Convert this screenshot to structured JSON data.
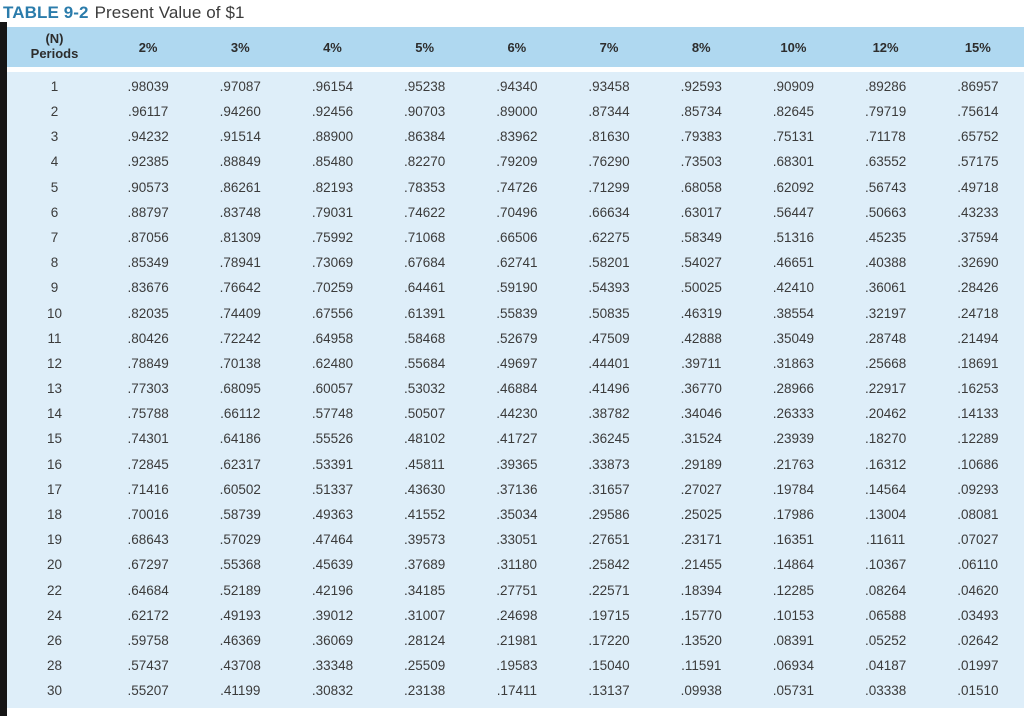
{
  "page": {
    "title_label": "TABLE 9-2",
    "title_text": "Present Value of $1"
  },
  "colors": {
    "title_accent": "#2b7cab",
    "header_bg": "#afd8f0",
    "body_bg": "#deeef9",
    "text": "#3b3b3b",
    "left_edge": "#151515"
  },
  "table": {
    "periods_header_line1": "(N)",
    "periods_header_line2": "Periods",
    "rate_headers": [
      "2%",
      "3%",
      "4%",
      "5%",
      "6%",
      "7%",
      "8%",
      "10%",
      "12%",
      "15%"
    ],
    "rows": [
      {
        "period": "1",
        "values": [
          ".98039",
          ".97087",
          ".96154",
          ".95238",
          ".94340",
          ".93458",
          ".92593",
          ".90909",
          ".89286",
          ".86957"
        ]
      },
      {
        "period": "2",
        "values": [
          ".96117",
          ".94260",
          ".92456",
          ".90703",
          ".89000",
          ".87344",
          ".85734",
          ".82645",
          ".79719",
          ".75614"
        ]
      },
      {
        "period": "3",
        "values": [
          ".94232",
          ".91514",
          ".88900",
          ".86384",
          ".83962",
          ".81630",
          ".79383",
          ".75131",
          ".71178",
          ".65752"
        ]
      },
      {
        "period": "4",
        "values": [
          ".92385",
          ".88849",
          ".85480",
          ".82270",
          ".79209",
          ".76290",
          ".73503",
          ".68301",
          ".63552",
          ".57175"
        ]
      },
      {
        "period": "5",
        "values": [
          ".90573",
          ".86261",
          ".82193",
          ".78353",
          ".74726",
          ".71299",
          ".68058",
          ".62092",
          ".56743",
          ".49718"
        ]
      },
      {
        "period": "6",
        "values": [
          ".88797",
          ".83748",
          ".79031",
          ".74622",
          ".70496",
          ".66634",
          ".63017",
          ".56447",
          ".50663",
          ".43233"
        ]
      },
      {
        "period": "7",
        "values": [
          ".87056",
          ".81309",
          ".75992",
          ".71068",
          ".66506",
          ".62275",
          ".58349",
          ".51316",
          ".45235",
          ".37594"
        ]
      },
      {
        "period": "8",
        "values": [
          ".85349",
          ".78941",
          ".73069",
          ".67684",
          ".62741",
          ".58201",
          ".54027",
          ".46651",
          ".40388",
          ".32690"
        ]
      },
      {
        "period": "9",
        "values": [
          ".83676",
          ".76642",
          ".70259",
          ".64461",
          ".59190",
          ".54393",
          ".50025",
          ".42410",
          ".36061",
          ".28426"
        ]
      },
      {
        "period": "10",
        "values": [
          ".82035",
          ".74409",
          ".67556",
          ".61391",
          ".55839",
          ".50835",
          ".46319",
          ".38554",
          ".32197",
          ".24718"
        ]
      },
      {
        "period": "11",
        "values": [
          ".80426",
          ".72242",
          ".64958",
          ".58468",
          ".52679",
          ".47509",
          ".42888",
          ".35049",
          ".28748",
          ".21494"
        ]
      },
      {
        "period": "12",
        "values": [
          ".78849",
          ".70138",
          ".62480",
          ".55684",
          ".49697",
          ".44401",
          ".39711",
          ".31863",
          ".25668",
          ".18691"
        ]
      },
      {
        "period": "13",
        "values": [
          ".77303",
          ".68095",
          ".60057",
          ".53032",
          ".46884",
          ".41496",
          ".36770",
          ".28966",
          ".22917",
          ".16253"
        ]
      },
      {
        "period": "14",
        "values": [
          ".75788",
          ".66112",
          ".57748",
          ".50507",
          ".44230",
          ".38782",
          ".34046",
          ".26333",
          ".20462",
          ".14133"
        ]
      },
      {
        "period": "15",
        "values": [
          ".74301",
          ".64186",
          ".55526",
          ".48102",
          ".41727",
          ".36245",
          ".31524",
          ".23939",
          ".18270",
          ".12289"
        ]
      },
      {
        "period": "16",
        "values": [
          ".72845",
          ".62317",
          ".53391",
          ".45811",
          ".39365",
          ".33873",
          ".29189",
          ".21763",
          ".16312",
          ".10686"
        ]
      },
      {
        "period": "17",
        "values": [
          ".71416",
          ".60502",
          ".51337",
          ".43630",
          ".37136",
          ".31657",
          ".27027",
          ".19784",
          ".14564",
          ".09293"
        ]
      },
      {
        "period": "18",
        "values": [
          ".70016",
          ".58739",
          ".49363",
          ".41552",
          ".35034",
          ".29586",
          ".25025",
          ".17986",
          ".13004",
          ".08081"
        ]
      },
      {
        "period": "19",
        "values": [
          ".68643",
          ".57029",
          ".47464",
          ".39573",
          ".33051",
          ".27651",
          ".23171",
          ".16351",
          ".11611",
          ".07027"
        ]
      },
      {
        "period": "20",
        "values": [
          ".67297",
          ".55368",
          ".45639",
          ".37689",
          ".31180",
          ".25842",
          ".21455",
          ".14864",
          ".10367",
          ".06110"
        ]
      },
      {
        "period": "22",
        "values": [
          ".64684",
          ".52189",
          ".42196",
          ".34185",
          ".27751",
          ".22571",
          ".18394",
          ".12285",
          ".08264",
          ".04620"
        ]
      },
      {
        "period": "24",
        "values": [
          ".62172",
          ".49193",
          ".39012",
          ".31007",
          ".24698",
          ".19715",
          ".15770",
          ".10153",
          ".06588",
          ".03493"
        ]
      },
      {
        "period": "26",
        "values": [
          ".59758",
          ".46369",
          ".36069",
          ".28124",
          ".21981",
          ".17220",
          ".13520",
          ".08391",
          ".05252",
          ".02642"
        ]
      },
      {
        "period": "28",
        "values": [
          ".57437",
          ".43708",
          ".33348",
          ".25509",
          ".19583",
          ".15040",
          ".11591",
          ".06934",
          ".04187",
          ".01997"
        ]
      },
      {
        "period": "30",
        "values": [
          ".55207",
          ".41199",
          ".30832",
          ".23138",
          ".17411",
          ".13137",
          ".09938",
          ".05731",
          ".03338",
          ".01510"
        ]
      }
    ]
  }
}
